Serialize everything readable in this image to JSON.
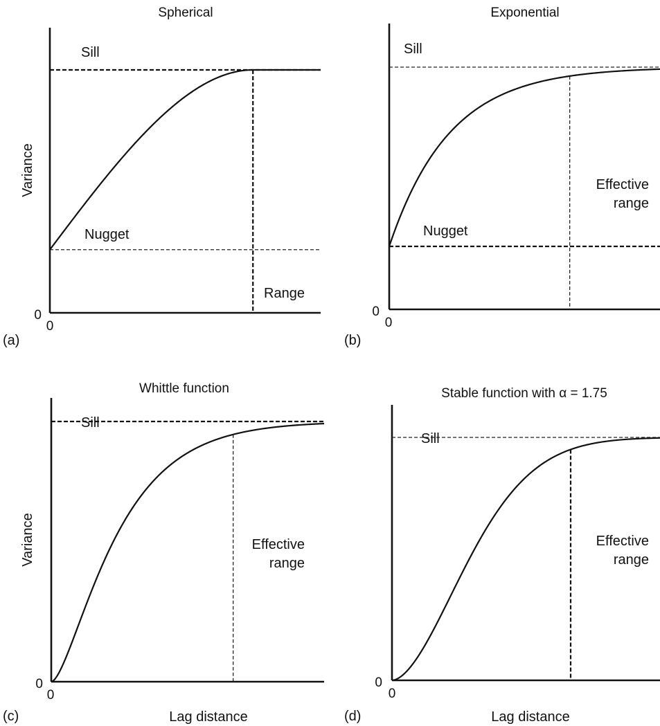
{
  "chart_data": [
    {
      "type": "line",
      "panel_label": "(a)",
      "title": "Spherical",
      "model": "spherical",
      "ylabel": "Variance",
      "xlabel": "",
      "x_tick": "0",
      "y_tick": "0",
      "xlim": [
        0,
        1.2
      ],
      "ylim": [
        0,
        1.0
      ],
      "nugget": 0.26,
      "sill": 1.0,
      "range": 0.9,
      "annotations": {
        "sill": "Sill",
        "nugget": "Nugget",
        "range": "Range"
      }
    },
    {
      "type": "line",
      "panel_label": "(b)",
      "title": "Exponential",
      "model": "exponential",
      "ylabel": "",
      "xlabel": "",
      "x_tick": "0",
      "y_tick": "0",
      "xlim": [
        0,
        1.5
      ],
      "ylim": [
        0,
        1.0
      ],
      "nugget": 0.26,
      "sill": 1.0,
      "effective_range": 1.0,
      "annotations": {
        "sill": "Sill",
        "nugget": "Nugget",
        "effective_range_line1": "Effective",
        "effective_range_line2": "range"
      }
    },
    {
      "type": "line",
      "panel_label": "(c)",
      "title": "Whittle function",
      "model": "whittle",
      "ylabel": "Variance",
      "xlabel": "Lag distance",
      "x_tick": "0",
      "y_tick": "0",
      "xlim": [
        0,
        1.5
      ],
      "ylim": [
        0,
        1.0
      ],
      "nugget": 0,
      "sill": 1.0,
      "effective_range": 1.0,
      "annotations": {
        "sill": "Sill",
        "effective_range_line1": "Effective",
        "effective_range_line2": "range"
      }
    },
    {
      "type": "line",
      "panel_label": "(d)",
      "title": "Stable function with α = 1.75",
      "model": "stable",
      "alpha": 1.75,
      "ylabel": "",
      "xlabel": "Lag distance",
      "x_tick": "0",
      "y_tick": "0",
      "xlim": [
        0,
        1.5
      ],
      "ylim": [
        0,
        1.0
      ],
      "nugget": 0,
      "sill": 1.0,
      "effective_range": 1.0,
      "annotations": {
        "sill": "Sill",
        "effective_range_line1": "Effective",
        "effective_range_line2": "range"
      }
    }
  ]
}
